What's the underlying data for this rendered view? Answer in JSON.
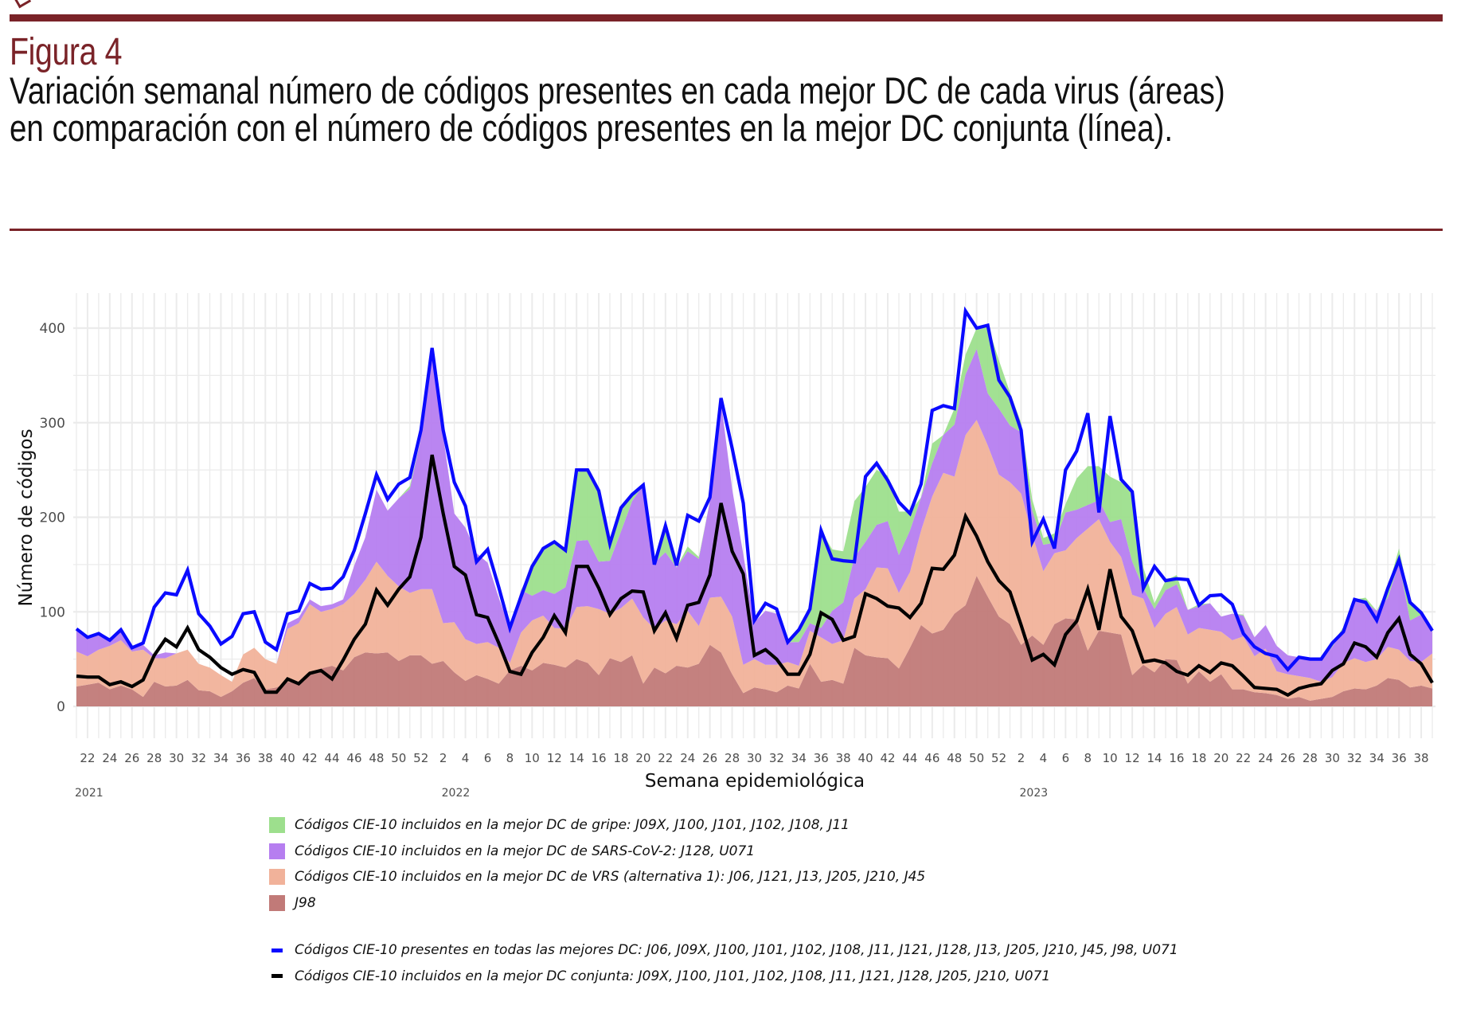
{
  "header": {
    "figure_label": "Figura 4",
    "title_line1": "Variación semanal número de códigos presentes en cada mejor DC de cada virus (áreas)",
    "title_line2": "en comparación con el número de códigos presentes en la mejor DC conjunta (línea)."
  },
  "colors": {
    "brand": "#7a2328",
    "gripe": "#9ddf8d",
    "sars": "#b67ef0",
    "vrs": "#f1b29a",
    "j98": "#c17a78",
    "total_line": "#0a0aff",
    "conjunta_line": "#000000",
    "grid": "#ebebeb"
  },
  "legend": {
    "areas": [
      {
        "key": "gripe",
        "label": "Códigos CIE-10 incluidos en la mejor DC de gripe: J09X, J100, J101, J102, J108, J11"
      },
      {
        "key": "sars",
        "label": "Códigos CIE-10 incluidos en la mejor DC de SARS-CoV-2: J128, U071"
      },
      {
        "key": "vrs",
        "label": "Códigos CIE-10 incluidos en la mejor DC de VRS (alternativa 1): J06, J121, J13, J205, J210, J45"
      },
      {
        "key": "j98",
        "label": "J98"
      }
    ],
    "lines": [
      {
        "key": "total",
        "label": "Códigos CIE-10 presentes en todas las mejores DC: J06, J09X, J100, J101, J102, J108, J11, J121, J128, J13, J205, J210, J45, J98, U071"
      },
      {
        "key": "conjunta",
        "label": "Códigos CIE-10 incluidos en la mejor DC conjunta: J09X, J100, J101, J102, J108, J11, J121, J128, J205, J210, U071"
      }
    ]
  },
  "chart_data": {
    "type": "area",
    "stacked": true,
    "title": "",
    "xlabel": "Semana epidemiológica",
    "ylabel": "Número de códigos",
    "ylim": [
      0,
      435
    ],
    "yticks": [
      0,
      100,
      200,
      300,
      400
    ],
    "grid": true,
    "legend_position": "bottom",
    "years": [
      {
        "label": "2021",
        "start_week": 21,
        "end_week": 52
      },
      {
        "label": "2022",
        "start_week": 1,
        "end_week": 52
      },
      {
        "label": "2023",
        "start_week": 1,
        "end_week": 39
      }
    ],
    "x_tick_labels": [
      "22",
      "24",
      "26",
      "28",
      "30",
      "32",
      "34",
      "36",
      "38",
      "40",
      "42",
      "44",
      "46",
      "48",
      "50",
      "52",
      "2",
      "4",
      "6",
      "8",
      "10",
      "12",
      "14",
      "16",
      "18",
      "20",
      "22",
      "24",
      "26",
      "28",
      "30",
      "32",
      "34",
      "36",
      "38",
      "40",
      "42",
      "44",
      "46",
      "48",
      "50",
      "52",
      "2",
      "4",
      "6",
      "8",
      "10",
      "12",
      "14",
      "16",
      "18",
      "20",
      "22",
      "24",
      "26",
      "28",
      "30",
      "32",
      "34",
      "36",
      "38"
    ],
    "x_tick_indices": [
      1,
      3,
      5,
      7,
      9,
      11,
      13,
      15,
      17,
      19,
      21,
      23,
      25,
      27,
      29,
      31,
      33,
      35,
      37,
      39,
      41,
      43,
      45,
      47,
      49,
      51,
      53,
      55,
      57,
      59,
      61,
      63,
      65,
      67,
      69,
      71,
      73,
      75,
      77,
      79,
      81,
      83,
      85,
      87,
      89,
      91,
      93,
      95,
      97,
      99,
      101,
      103,
      105,
      107,
      109,
      111,
      113,
      115,
      117,
      119,
      121
    ],
    "year_label_indices": [
      0,
      33,
      85
    ],
    "weeks": [
      21,
      22,
      23,
      24,
      25,
      26,
      27,
      28,
      29,
      30,
      31,
      32,
      33,
      34,
      35,
      36,
      37,
      38,
      39,
      40,
      41,
      42,
      43,
      44,
      45,
      46,
      47,
      48,
      49,
      50,
      51,
      52,
      1,
      2,
      3,
      4,
      5,
      6,
      7,
      8,
      9,
      10,
      11,
      12,
      13,
      14,
      15,
      16,
      17,
      18,
      19,
      20,
      21,
      22,
      23,
      24,
      25,
      26,
      27,
      28,
      29,
      30,
      31,
      32,
      33,
      34,
      35,
      36,
      37,
      38,
      39,
      40,
      41,
      42,
      43,
      44,
      45,
      46,
      47,
      48,
      49,
      50,
      51,
      52,
      1,
      2,
      3,
      4,
      5,
      6,
      7,
      8,
      9,
      10,
      11,
      12,
      13,
      14,
      15,
      16,
      17,
      18,
      19,
      20,
      21,
      22,
      23,
      24,
      25,
      26,
      27,
      28,
      29,
      30,
      31,
      32,
      33,
      34,
      35,
      36,
      37,
      38,
      39
    ],
    "series": [
      {
        "name": "J98",
        "key": "j98",
        "values": [
          21,
          23,
          25,
          18,
          22,
          18,
          10,
          26,
          21,
          22,
          28,
          17,
          16,
          10,
          16,
          25,
          30,
          18,
          20,
          26,
          25,
          35,
          40,
          43,
          38,
          52,
          57,
          56,
          57,
          48,
          54,
          54,
          45,
          48,
          36,
          27,
          33,
          29,
          24,
          38,
          43,
          38,
          46,
          44,
          41,
          50,
          46,
          33,
          51,
          47,
          54,
          24,
          41,
          35,
          43,
          41,
          45,
          65,
          57,
          34,
          14,
          20,
          18,
          15,
          22,
          19,
          45,
          26,
          28,
          24,
          62,
          54,
          52,
          51,
          40,
          62,
          86,
          77,
          81,
          98,
          107,
          138,
          116,
          95,
          87,
          65,
          75,
          65,
          87,
          93,
          92,
          59,
          80,
          78,
          76,
          33,
          44,
          36,
          50,
          49,
          24,
          37,
          26,
          34,
          18,
          18,
          15,
          14,
          12,
          8,
          10,
          6,
          8,
          10,
          16,
          19,
          18,
          22,
          30,
          28,
          20,
          22,
          19
        ]
      },
      {
        "name": "VRS",
        "key": "vrs",
        "values": [
          37,
          30,
          35,
          46,
          48,
          40,
          50,
          25,
          30,
          34,
          32,
          28,
          25,
          23,
          10,
          30,
          32,
          32,
          25,
          56,
          63,
          73,
          60,
          60,
          70,
          67,
          77,
          97,
          81,
          79,
          66,
          70,
          79,
          40,
          53,
          44,
          33,
          39,
          38,
          8,
          35,
          53,
          50,
          39,
          41,
          55,
          60,
          70,
          47,
          57,
          60,
          70,
          41,
          56,
          44,
          60,
          40,
          50,
          59,
          61,
          30,
          30,
          26,
          29,
          25,
          24,
          35,
          47,
          38,
          46,
          52,
          70,
          95,
          95,
          80,
          80,
          100,
          145,
          166,
          145,
          180,
          165,
          160,
          150,
          150,
          160,
          107,
          78,
          75,
          72,
          86,
          129,
          118,
          96,
          82,
          85,
          70,
          47,
          48,
          56,
          52,
          46,
          55,
          45,
          52,
          56,
          38,
          47,
          25,
          26,
          22,
          24,
          18,
          21,
          30,
          32,
          29,
          28,
          33,
          32,
          28,
          25,
          37
        ]
      },
      {
        "name": "SARS-CoV-2",
        "key": "sars",
        "values": [
          24,
          20,
          17,
          6,
          11,
          4,
          5,
          3,
          6,
          0,
          0,
          0,
          0,
          0,
          0,
          0,
          0,
          0,
          0,
          6,
          6,
          5,
          6,
          5,
          5,
          30,
          45,
          76,
          69,
          93,
          110,
          160,
          249,
          198,
          115,
          118,
          96,
          84,
          53,
          36,
          45,
          26,
          27,
          36,
          44,
          70,
          70,
          50,
          56,
          81,
          103,
          140,
          70,
          72,
          60,
          63,
          71,
          102,
          206,
          135,
          117,
          39,
          57,
          54,
          21,
          25,
          8,
          10,
          35,
          40,
          44,
          50,
          45,
          50,
          40,
          44,
          35,
          35,
          40,
          55,
          64,
          75,
          55,
          70,
          60,
          65,
          25,
          28,
          11,
          40,
          30,
          25,
          20,
          21,
          40,
          35,
          11,
          20,
          25,
          24,
          26,
          23,
          28,
          16,
          28,
          22,
          20,
          25,
          27,
          20,
          20,
          20,
          24,
          32,
          36,
          62,
          63,
          51,
          52,
          92,
          43,
          50,
          23
        ]
      },
      {
        "name": "Gripe",
        "key": "gripe",
        "values": [
          0,
          0,
          0,
          0,
          0,
          0,
          0,
          0,
          0,
          0,
          0,
          0,
          0,
          0,
          0,
          0,
          0,
          0,
          0,
          0,
          0,
          0,
          0,
          0,
          0,
          0,
          0,
          0,
          0,
          0,
          3,
          0,
          0,
          0,
          0,
          0,
          0,
          0,
          0,
          0,
          0,
          29,
          44,
          55,
          38,
          72,
          76,
          75,
          18,
          25,
          7,
          0,
          0,
          28,
          0,
          5,
          2,
          0,
          0,
          0,
          0,
          0,
          0,
          0,
          0,
          13,
          15,
          103,
          65,
          54,
          59,
          58,
          58,
          48,
          46,
          20,
          0,
          21,
          0,
          17,
          21,
          22,
          72,
          51,
          35,
          10,
          12,
          7,
          10,
          9,
          33,
          41,
          36,
          48,
          39,
          73,
          22,
          6,
          10,
          10,
          0,
          2,
          0,
          0,
          0,
          1,
          0,
          0,
          0,
          0,
          0,
          0,
          0,
          3,
          2,
          0,
          5,
          0,
          10,
          15,
          20,
          2,
          1
        ]
      },
      {
        "name": "Total (todas las mejores DC)",
        "key": "total",
        "type": "line",
        "values": [
          82,
          73,
          77,
          70,
          81,
          62,
          67,
          105,
          120,
          118,
          144,
          98,
          85,
          66,
          74,
          98,
          100,
          68,
          60,
          98,
          101,
          130,
          124,
          125,
          137,
          165,
          204,
          245,
          219,
          235,
          242,
          292,
          379,
          292,
          237,
          212,
          153,
          166,
          126,
          83,
          116,
          148,
          167,
          174,
          165,
          250,
          250,
          228,
          172,
          210,
          224,
          234,
          150,
          191,
          149,
          202,
          196,
          221,
          326,
          273,
          215,
          91,
          109,
          103,
          68,
          81,
          103,
          186,
          156,
          154,
          153,
          243,
          257,
          239,
          216,
          204,
          235,
          313,
          318,
          315,
          418,
          400,
          403,
          345,
          327,
          292,
          174,
          198,
          167,
          250,
          270,
          310,
          205,
          307,
          240,
          227,
          125,
          148,
          133,
          135,
          134,
          107,
          117,
          118,
          108,
          77,
          63,
          56,
          53,
          39,
          52,
          50,
          50,
          67,
          79,
          113,
          110,
          91,
          125,
          155,
          110,
          99,
          80
        ]
      },
      {
        "name": "Mejor DC conjunta",
        "key": "conjunta",
        "type": "line",
        "values": [
          32,
          31,
          31,
          23,
          26,
          21,
          28,
          54,
          71,
          63,
          83,
          60,
          52,
          41,
          34,
          39,
          36,
          15,
          15,
          29,
          24,
          35,
          38,
          29,
          49,
          71,
          87,
          123,
          107,
          124,
          137,
          179,
          266,
          204,
          148,
          139,
          97,
          94,
          67,
          37,
          34,
          57,
          73,
          96,
          78,
          148,
          148,
          125,
          97,
          114,
          122,
          121,
          80,
          99,
          72,
          107,
          110,
          139,
          215,
          164,
          140,
          54,
          60,
          50,
          34,
          34,
          55,
          99,
          92,
          70,
          74,
          119,
          114,
          106,
          104,
          94,
          109,
          146,
          145,
          160,
          201,
          180,
          153,
          133,
          121,
          86,
          49,
          55,
          44,
          76,
          90,
          124,
          81,
          145,
          95,
          80,
          47,
          49,
          46,
          37,
          33,
          43,
          36,
          46,
          43,
          32,
          20,
          19,
          18,
          12,
          19,
          22,
          24,
          38,
          45,
          67,
          63,
          52,
          78,
          93,
          55,
          45,
          25
        ]
      }
    ]
  },
  "axis": {
    "y_tick_labels": [
      "0",
      "100",
      "200",
      "300",
      "400"
    ],
    "year_labels": [
      "2021",
      "2022",
      "2023"
    ]
  }
}
